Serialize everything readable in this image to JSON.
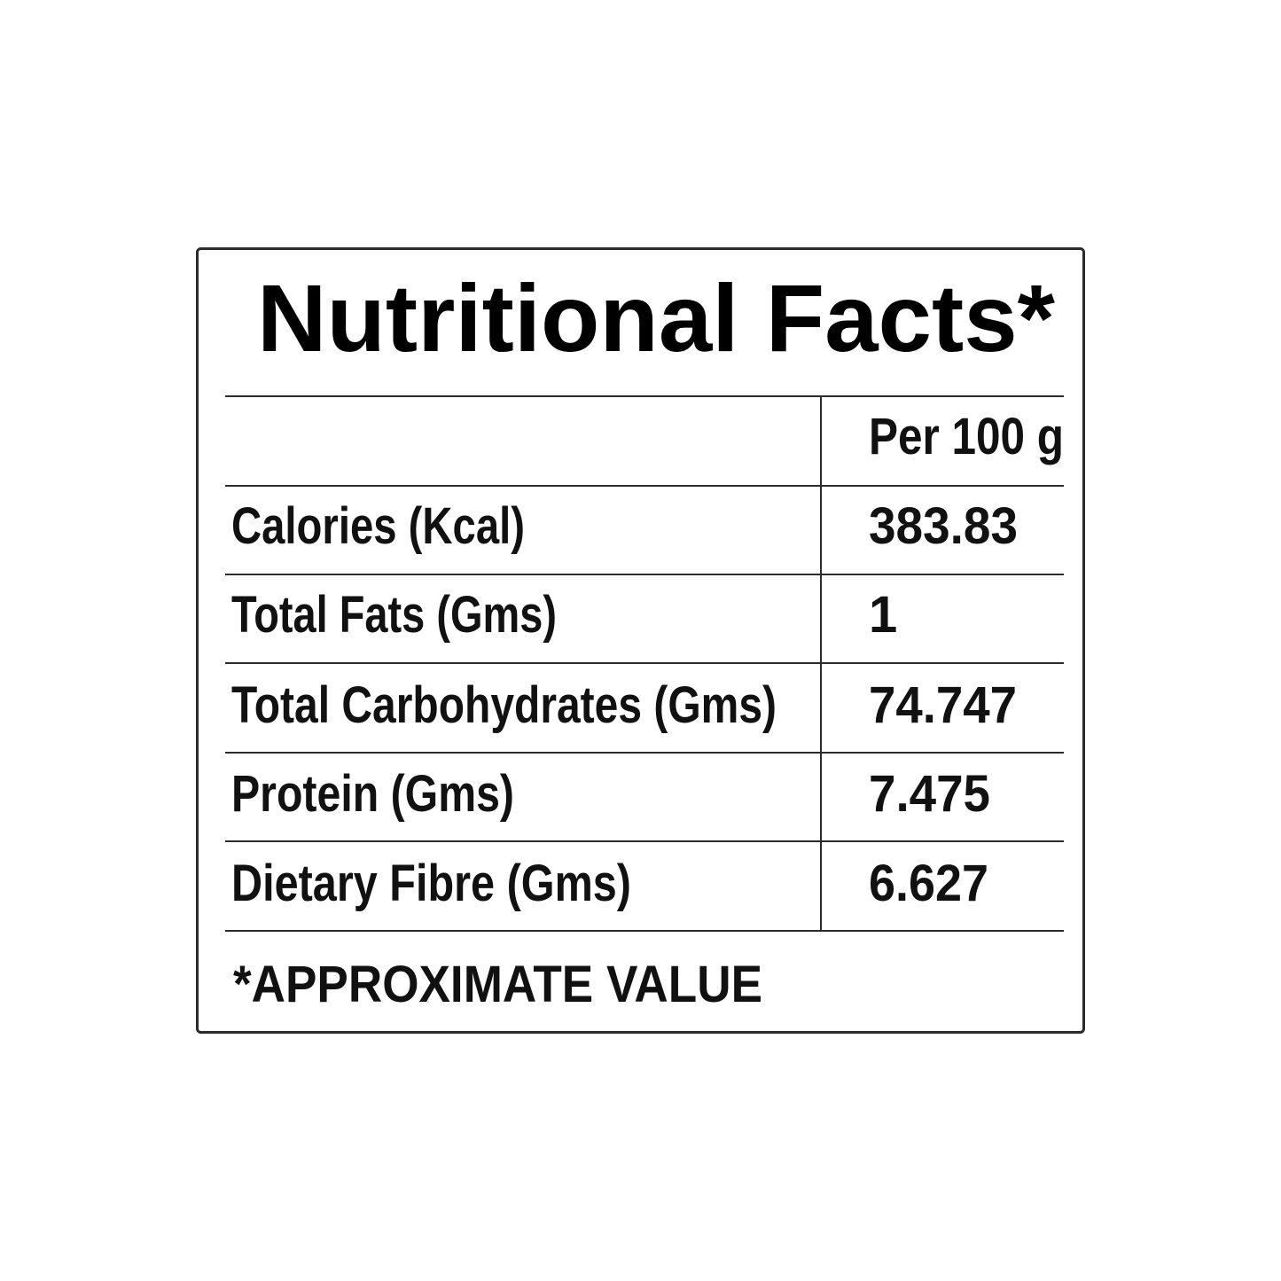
{
  "label": {
    "title": "Nutritional Facts*",
    "column_header": "Per 100 g",
    "rows": [
      {
        "nutrient": "Calories (Kcal)",
        "value": "383.83"
      },
      {
        "nutrient": "Total Fats (Gms)",
        "value": "1"
      },
      {
        "nutrient": "Total Carbohydrates (Gms)",
        "value": "74.747"
      },
      {
        "nutrient": "Protein (Gms)",
        "value": "7.475"
      },
      {
        "nutrient": "Dietary Fibre (Gms)",
        "value": "6.627"
      }
    ],
    "footnote": "*APPROXIMATE VALUE"
  },
  "colors": {
    "border": "#2b2b2b",
    "text": "#000000",
    "background": "#ffffff"
  }
}
